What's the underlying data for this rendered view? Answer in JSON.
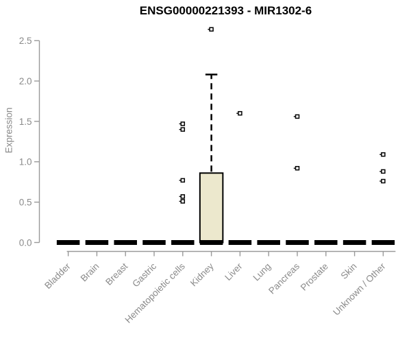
{
  "chart_data": {
    "type": "boxplot",
    "title": "ENSG00000221393 - MIR1302-6",
    "ylabel": "Expression",
    "xlabel": "",
    "ylim": [
      0,
      2.65
    ],
    "yticks": [
      0,
      0.5,
      1,
      1.5,
      2,
      2.5
    ],
    "grid": false,
    "legend": "none",
    "categories": [
      "Bladder",
      "Brain",
      "Breast",
      "Gastric",
      "Hematopoietic cells",
      "Kidney",
      "Liver",
      "Lung",
      "Pancreas",
      "Prostate",
      "Skin",
      "Unknown / Other"
    ],
    "series": [
      {
        "category": "Bladder",
        "q1": 0,
        "median": 0,
        "q3": 0,
        "whisker_low": 0,
        "whisker_high": 0,
        "outliers": []
      },
      {
        "category": "Brain",
        "q1": 0,
        "median": 0,
        "q3": 0,
        "whisker_low": 0,
        "whisker_high": 0,
        "outliers": []
      },
      {
        "category": "Breast",
        "q1": 0,
        "median": 0,
        "q3": 0,
        "whisker_low": 0,
        "whisker_high": 0,
        "outliers": []
      },
      {
        "category": "Gastric",
        "q1": 0,
        "median": 0,
        "q3": 0,
        "whisker_low": 0,
        "whisker_high": 0,
        "outliers": []
      },
      {
        "category": "Hematopoietic cells",
        "q1": 0,
        "median": 0,
        "q3": 0,
        "whisker_low": 0,
        "whisker_high": 0,
        "outliers": [
          1.47,
          1.4,
          0.77,
          0.57,
          0.51
        ]
      },
      {
        "category": "Kidney",
        "q1": 0,
        "median": 0,
        "q3": 0.86,
        "whisker_low": 0,
        "whisker_high": 2.08,
        "outliers": [
          2.64
        ]
      },
      {
        "category": "Liver",
        "q1": 0,
        "median": 0,
        "q3": 0,
        "whisker_low": 0,
        "whisker_high": 0,
        "outliers": [
          1.6
        ]
      },
      {
        "category": "Lung",
        "q1": 0,
        "median": 0,
        "q3": 0,
        "whisker_low": 0,
        "whisker_high": 0,
        "outliers": []
      },
      {
        "category": "Pancreas",
        "q1": 0,
        "median": 0,
        "q3": 0,
        "whisker_low": 0,
        "whisker_high": 0,
        "outliers": [
          1.56,
          0.92
        ]
      },
      {
        "category": "Prostate",
        "q1": 0,
        "median": 0,
        "q3": 0,
        "whisker_low": 0,
        "whisker_high": 0,
        "outliers": []
      },
      {
        "category": "Skin",
        "q1": 0,
        "median": 0,
        "q3": 0,
        "whisker_low": 0,
        "whisker_high": 0,
        "outliers": []
      },
      {
        "category": "Unknown / Other",
        "q1": 0,
        "median": 0,
        "q3": 0,
        "whisker_low": 0,
        "whisker_high": 0,
        "outliers": [
          1.09,
          0.88,
          0.76
        ]
      }
    ],
    "colors": {
      "box_fill": "#ece8cd",
      "box_stroke": "#000000",
      "whisker": "#000000",
      "axis_line": "#999999",
      "tick_text": "#8a8a8a",
      "title_text": "#000000",
      "background": "#ffffff"
    }
  }
}
